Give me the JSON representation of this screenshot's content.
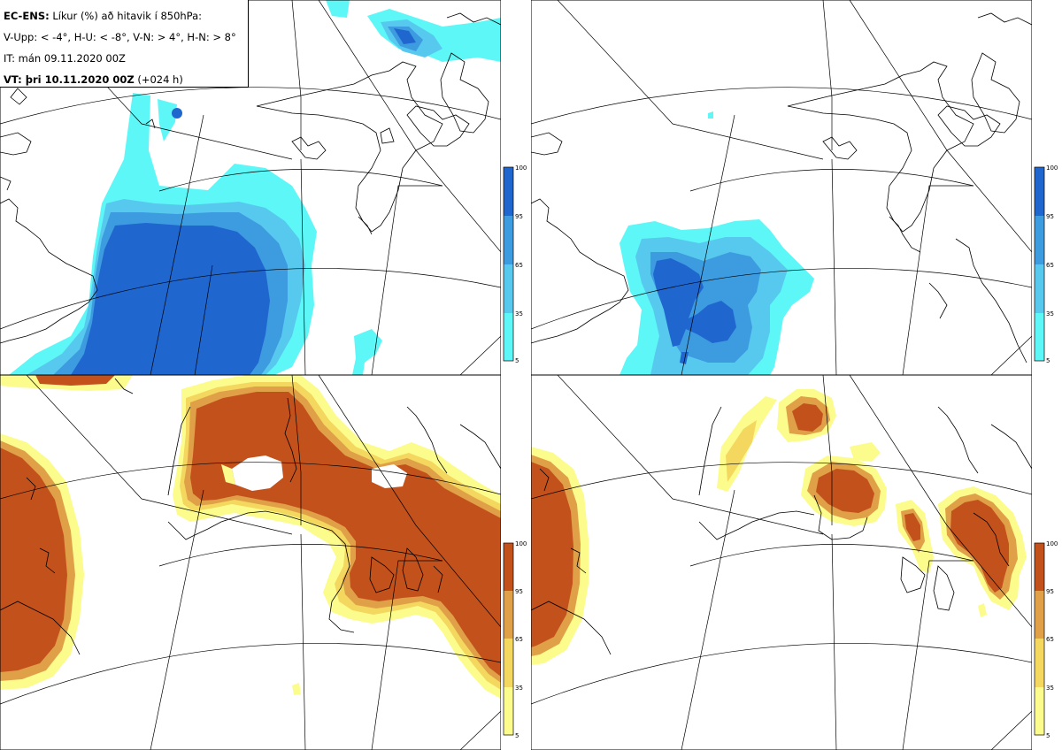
{
  "info": {
    "model": "EC-ENS:",
    "description": "Líkur (%) að hitavik í 850hPa:",
    "thresholds": "V-Upp: < -4°, H-U: < -8°, V-N: > 4°, H-N: > 8°",
    "initial_time": "IT: mán 09.11.2020 00Z",
    "valid_label": "VT: þri 10.11.2020 00Z",
    "lead_time": "(+024 h)"
  },
  "colorbar_ticks": [
    "100",
    "95",
    "65",
    "35",
    "5"
  ],
  "colors": {
    "cold": [
      "#5ef7f7",
      "#57c9ee",
      "#3d9be0",
      "#2066cf"
    ],
    "warm": [
      "#fcfc8c",
      "#f3d75e",
      "#e0a048",
      "#c3511c"
    ],
    "land_line": "#000000",
    "grid_line": "#000000"
  },
  "panels": [
    {
      "id": "top-left",
      "palette": "cold"
    },
    {
      "id": "top-right",
      "palette": "cold"
    },
    {
      "id": "bottom-left",
      "palette": "warm"
    },
    {
      "id": "bottom-right",
      "palette": "warm"
    }
  ]
}
